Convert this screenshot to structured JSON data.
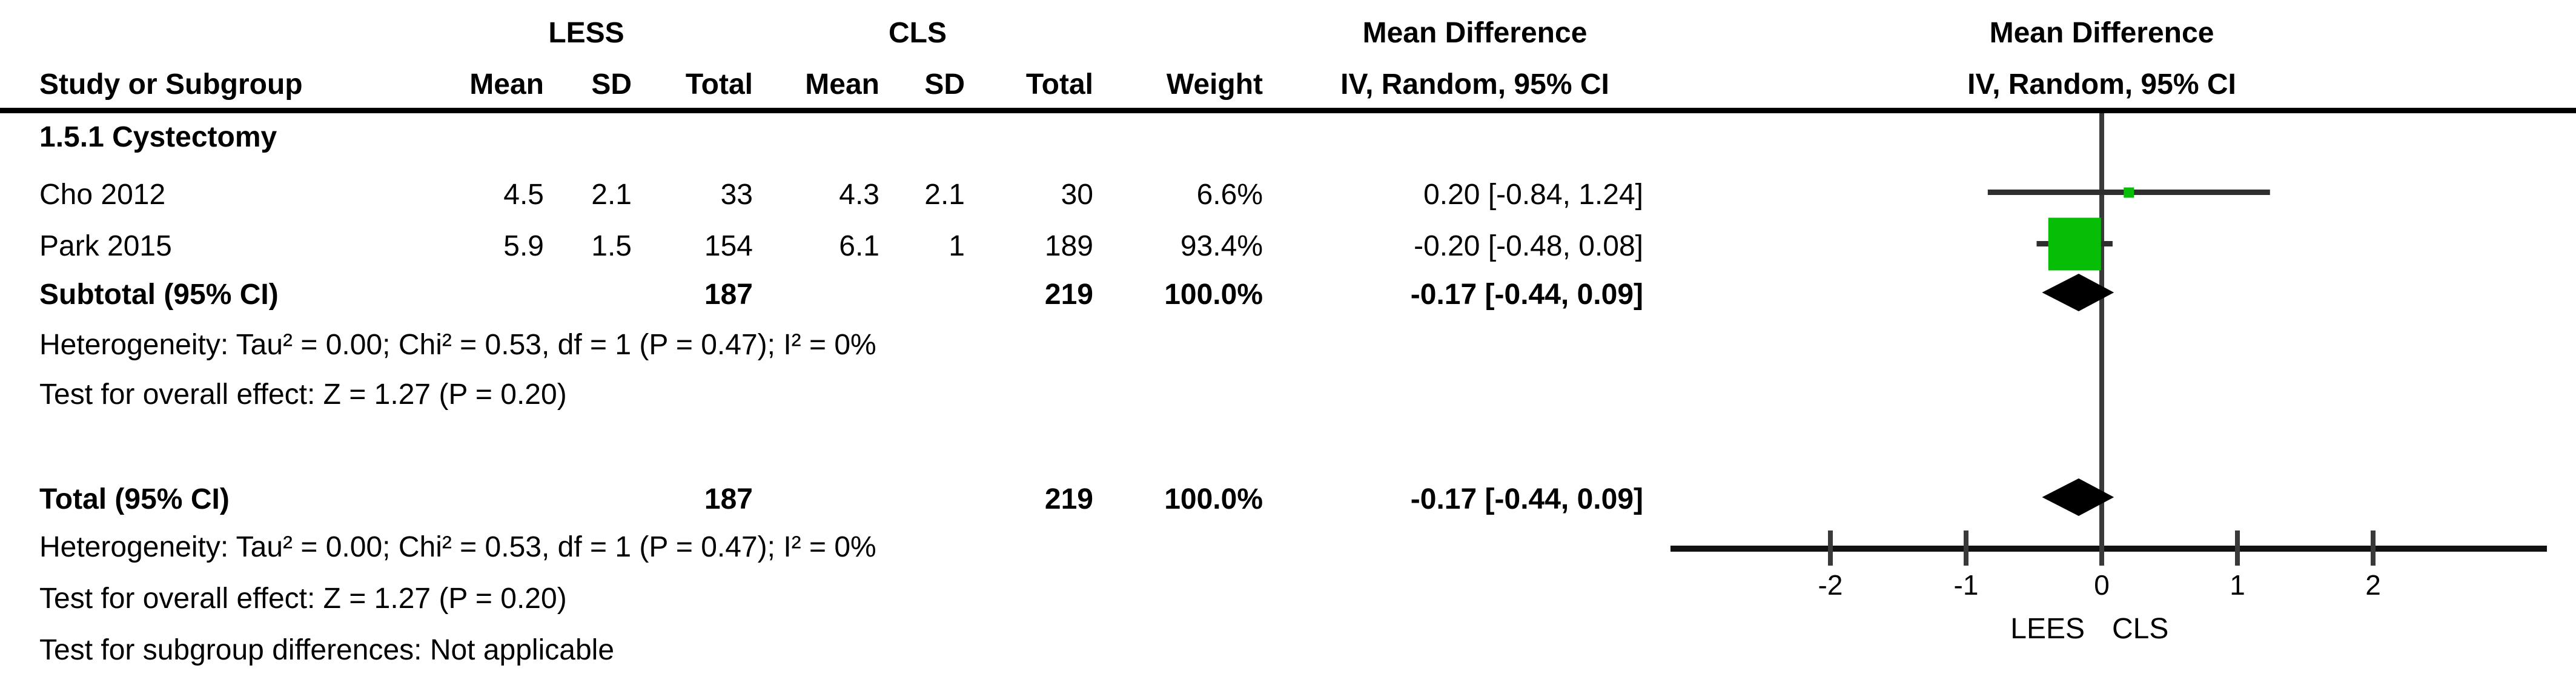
{
  "colors": {
    "square_green": "#05BE05",
    "ci_line": "#2e2e2e",
    "zero_line": "#3a3a3a",
    "axis_line": "#111111",
    "diamond": "#000000",
    "separator": "#000000"
  },
  "header": {
    "study_col": "Study or Subgroup",
    "group_less": "LESS",
    "group_cls": "CLS",
    "mean": "Mean",
    "sd": "SD",
    "total": "Total",
    "weight": "Weight",
    "mean_difference": "Mean Difference",
    "method_ci": "IV, Random, 95% CI"
  },
  "table": {
    "section_label": "1.5.1 Cystectomy",
    "studies": [
      {
        "name": "Cho 2012",
        "less_mean": "4.5",
        "less_sd": "2.1",
        "less_total": "33",
        "cls_mean": "4.3",
        "cls_sd": "2.1",
        "cls_total": "30",
        "weight": "6.6%",
        "estimate": "0.20 [-0.84, 1.24]"
      },
      {
        "name": "Park 2015",
        "less_mean": "5.9",
        "less_sd": "1.5",
        "less_total": "154",
        "cls_mean": "6.1",
        "cls_sd": "1",
        "cls_total": "189",
        "weight": "93.4%",
        "estimate": "-0.20 [-0.48, 0.08]"
      }
    ],
    "subtotal_row": {
      "label": "Subtotal (95% CI)",
      "less_total": "187",
      "cls_total": "219",
      "weight": "100.0%",
      "estimate": "-0.17 [-0.44, 0.09]"
    },
    "subgroup_notes": [
      "Heterogeneity: Tau² = 0.00; Chi² = 0.53, df = 1 (P = 0.47); I² = 0%",
      "Test for overall effect: Z = 1.27 (P = 0.20)"
    ],
    "total_row": {
      "label": "Total (95% CI)",
      "less_total": "187",
      "cls_total": "219",
      "weight": "100.0%",
      "estimate": "-0.17 [-0.44, 0.09]"
    },
    "total_notes": [
      "Heterogeneity: Tau² = 0.00; Chi² = 0.53, df = 1 (P = 0.47); I² = 0%",
      "Test for overall effect: Z = 1.27 (P = 0.20)",
      "Test for subgroup differences: Not applicable"
    ]
  },
  "chart_data": {
    "type": "forest",
    "effect_measure": "Mean Difference",
    "method": "IV, Random, 95% CI",
    "x_ticks": [
      -2,
      -1,
      0,
      1,
      2
    ],
    "x_range_shown": [
      -3.2,
      3.3
    ],
    "axis_label_left": "LEES",
    "axis_label_right": "CLS",
    "studies": [
      {
        "label": "Cho 2012",
        "md": 0.2,
        "ci_low": -0.84,
        "ci_high": 1.24,
        "weight_pct": 6.6
      },
      {
        "label": "Park 2015",
        "md": -0.2,
        "ci_low": -0.48,
        "ci_high": 0.08,
        "weight_pct": 93.4
      }
    ],
    "pooled": [
      {
        "label": "Subtotal (95% CI)",
        "md": -0.17,
        "ci_low": -0.44,
        "ci_high": 0.09
      },
      {
        "label": "Total (95% CI)",
        "md": -0.17,
        "ci_low": -0.44,
        "ci_high": 0.09
      }
    ]
  }
}
